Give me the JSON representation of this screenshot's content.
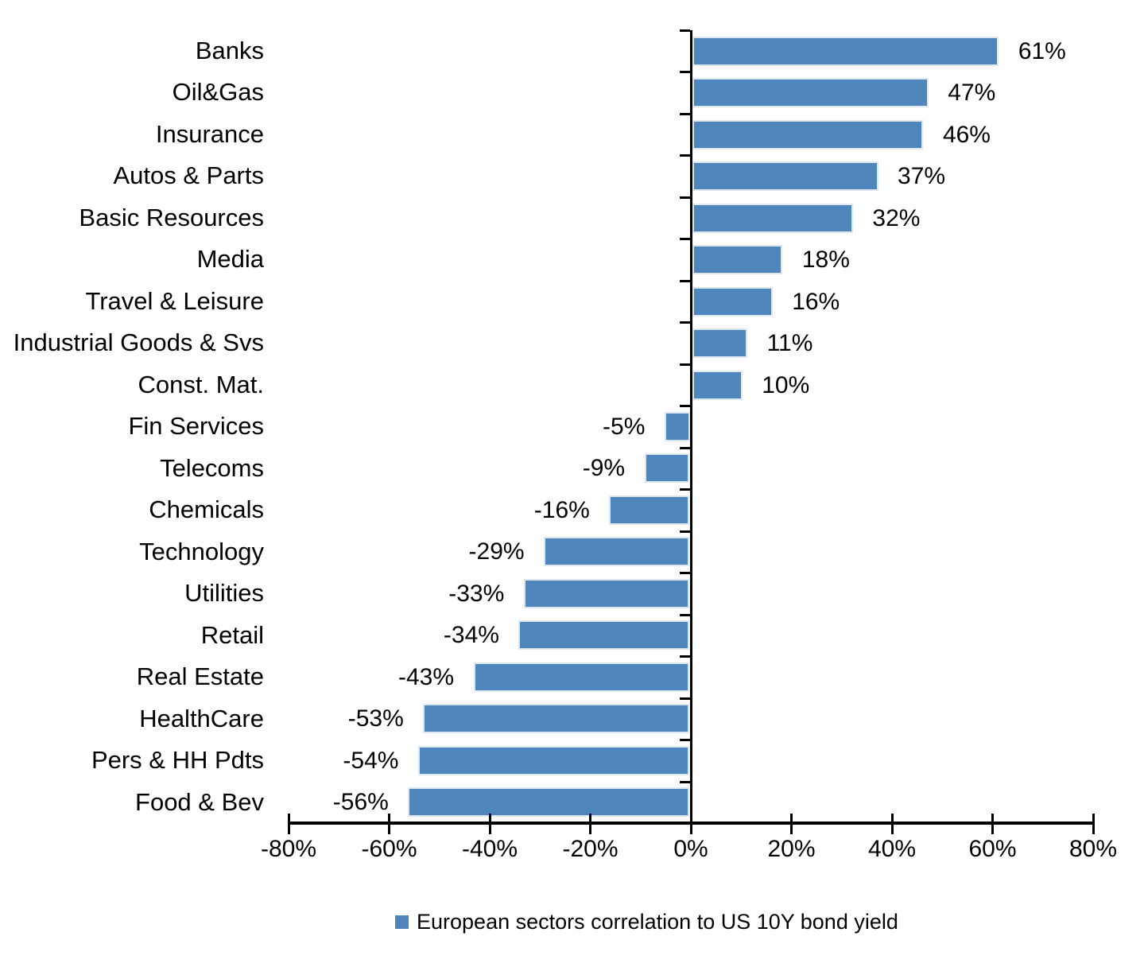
{
  "chart_data": {
    "type": "bar",
    "orientation": "horizontal",
    "title": "",
    "categories": [
      "Banks",
      "Oil&Gas",
      "Insurance",
      "Autos & Parts",
      "Basic Resources",
      "Media",
      "Travel & Leisure",
      "Industrial Goods & Svs",
      "Const. Mat.",
      "Fin Services",
      "Telecoms",
      "Chemicals",
      "Technology",
      "Utilities",
      "Retail",
      "Real Estate",
      "HealthCare",
      "Pers & HH Pdts",
      "Food & Bev"
    ],
    "values": [
      61,
      47,
      46,
      37,
      32,
      18,
      16,
      11,
      10,
      -5,
      -9,
      -16,
      -29,
      -33,
      -34,
      -43,
      -53,
      -54,
      -56
    ],
    "value_labels": [
      "61%",
      "47%",
      "46%",
      "37%",
      "32%",
      "18%",
      "16%",
      "11%",
      "10%",
      "-5%",
      "-9%",
      "-16%",
      "-29%",
      "-33%",
      "-34%",
      "-43%",
      "-53%",
      "-54%",
      "-56%"
    ],
    "x_ticks": [
      -80,
      -60,
      -40,
      -20,
      0,
      20,
      40,
      60,
      80
    ],
    "x_tick_labels": [
      "-80%",
      "-60%",
      "-40%",
      "-20%",
      "0%",
      "20%",
      "40%",
      "60%",
      "80%"
    ],
    "xlim": [
      -80,
      80
    ],
    "grid": false,
    "data_labels": "outside-end",
    "legend": {
      "position": "bottom",
      "label": "European sectors correlation to US 10Y bond yield"
    },
    "colors": {
      "bar_fill": "#4E86BC",
      "bar_border": "#DCE7F2",
      "axis": "#000000",
      "text": "#000000",
      "background": "#FFFFFF"
    }
  }
}
